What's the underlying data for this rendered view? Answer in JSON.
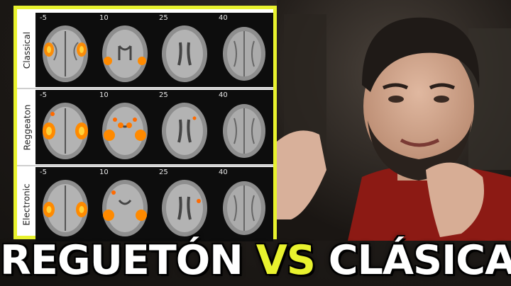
{
  "figure": {
    "rows": [
      {
        "label": "Classical"
      },
      {
        "label": "Reggeaton"
      },
      {
        "label": "Electronic"
      }
    ],
    "slice_numbers": [
      "-5",
      "10",
      "25",
      "40"
    ],
    "activation_color": "#ff8a00",
    "frame_color": "#e8f22e"
  },
  "headline": {
    "word1": "REGUETÓN",
    "vs": "VS",
    "word2": "CLÁSICA",
    "vs_color": "#e8f22e"
  }
}
